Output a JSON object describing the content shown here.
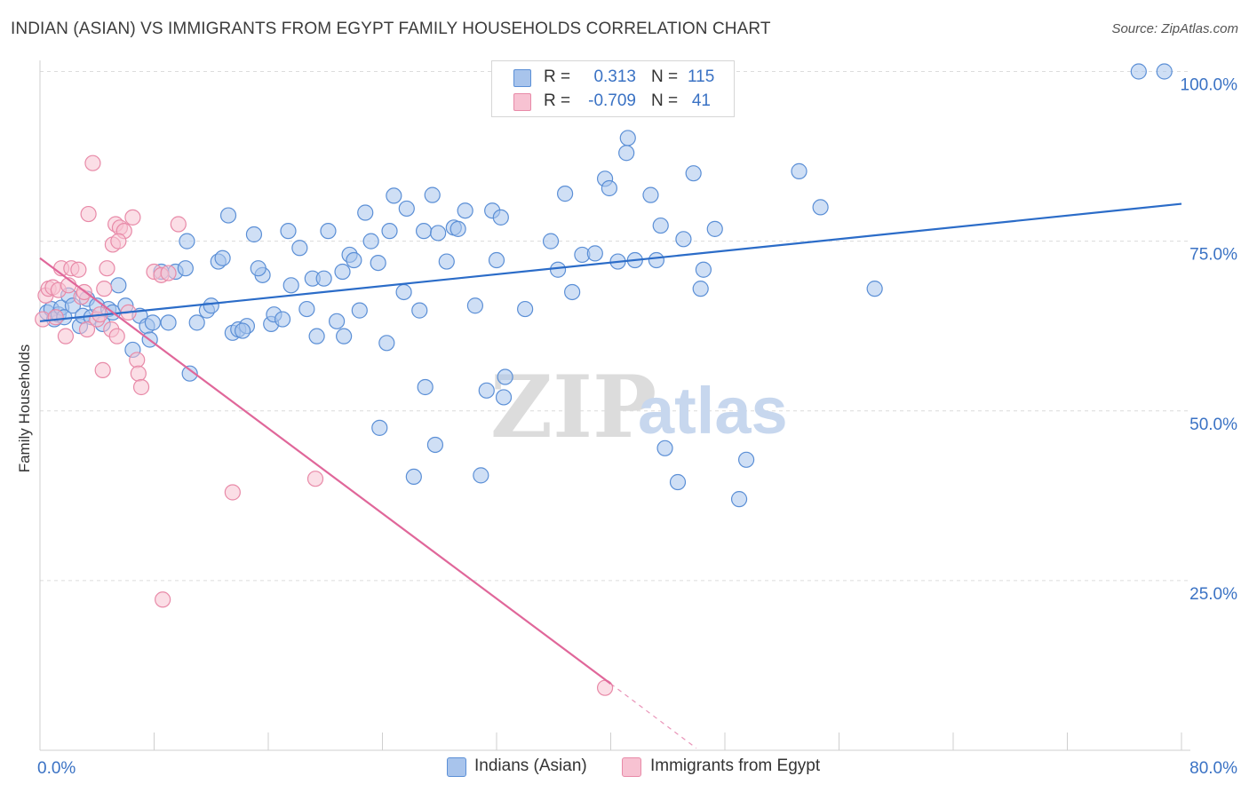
{
  "title": "INDIAN (ASIAN) VS IMMIGRANTS FROM EGYPT FAMILY HOUSEHOLDS CORRELATION CHART",
  "source": "Source: ZipAtlas.com",
  "watermark": {
    "zip": "ZIP",
    "atlas": "atlas"
  },
  "legend": {
    "rows": [
      {
        "r_label": "R =",
        "r_value": "0.313",
        "n_label": "N =",
        "n_value": "115",
        "color": "#a8c4ec"
      },
      {
        "r_label": "R =",
        "r_value": "-0.709",
        "n_label": "N =",
        "n_value": "41",
        "color": "#f5b6c8"
      }
    ]
  },
  "bottom_legend": [
    {
      "label": "Indians (Asian)",
      "color": "#a8c4ec"
    },
    {
      "label": "Immigrants from Egypt",
      "color": "#f5b6c8"
    }
  ],
  "colors": {
    "blue_fill": "#a8c4ec",
    "blue_stroke": "#5b8fd6",
    "blue_line": "#2b6cc8",
    "pink_fill": "#f7c2d2",
    "pink_stroke": "#e88aa8",
    "pink_line": "#e0679a",
    "tick_label": "#3a72c4",
    "grid": "#dcdcdc"
  },
  "chart_data": {
    "type": "scatter",
    "ylabel": "Family Households",
    "x_tick_labels": [
      "0.0%",
      "80.0%"
    ],
    "y_tick_labels": [
      "100.0%",
      "75.0%",
      "50.0%",
      "25.0%"
    ],
    "xlim": [
      0,
      80
    ],
    "ylim": [
      0,
      102
    ],
    "y_ticks": [
      100,
      75,
      50,
      25
    ],
    "grid": true,
    "legend_position": "top-center",
    "series": [
      {
        "name": "Indians (Asian)",
        "trend": {
          "x0": 0,
          "y0": 63.2,
          "x1": 80,
          "y1": 80.5
        },
        "points": [
          [
            0.5,
            64.5
          ],
          [
            0.8,
            65.0
          ],
          [
            1.0,
            63.5
          ],
          [
            1.3,
            64.2
          ],
          [
            1.5,
            65.2
          ],
          [
            1.7,
            63.8
          ],
          [
            2.0,
            67.0
          ],
          [
            2.3,
            65.5
          ],
          [
            2.8,
            62.5
          ],
          [
            3.0,
            64.0
          ],
          [
            3.3,
            66.5
          ],
          [
            3.6,
            63.8
          ],
          [
            4.0,
            65.5
          ],
          [
            4.4,
            62.8
          ],
          [
            4.8,
            65.0
          ],
          [
            5.1,
            64.5
          ],
          [
            5.5,
            68.5
          ],
          [
            6.0,
            65.5
          ],
          [
            6.5,
            59.0
          ],
          [
            7.0,
            64.0
          ],
          [
            7.5,
            62.5
          ],
          [
            7.7,
            60.5
          ],
          [
            8.5,
            70.5
          ],
          [
            9.0,
            63.0
          ],
          [
            9.5,
            70.5
          ],
          [
            10.3,
            75.0
          ],
          [
            10.5,
            55.5
          ],
          [
            11.0,
            63.0
          ],
          [
            11.7,
            64.8
          ],
          [
            12.0,
            65.5
          ],
          [
            12.5,
            72.0
          ],
          [
            12.8,
            72.5
          ],
          [
            13.2,
            78.8
          ],
          [
            13.5,
            61.5
          ],
          [
            13.9,
            62.0
          ],
          [
            14.5,
            62.5
          ],
          [
            14.2,
            61.8
          ],
          [
            15.0,
            76.0
          ],
          [
            15.6,
            70.0
          ],
          [
            15.3,
            71.0
          ],
          [
            16.2,
            62.8
          ],
          [
            16.4,
            64.2
          ],
          [
            17.0,
            63.5
          ],
          [
            17.4,
            76.5
          ],
          [
            17.6,
            68.5
          ],
          [
            18.2,
            74.0
          ],
          [
            18.7,
            65.0
          ],
          [
            19.1,
            69.5
          ],
          [
            19.4,
            61.0
          ],
          [
            19.9,
            69.5
          ],
          [
            20.2,
            76.5
          ],
          [
            20.8,
            63.2
          ],
          [
            21.2,
            70.5
          ],
          [
            21.3,
            61.0
          ],
          [
            21.7,
            73.0
          ],
          [
            22.0,
            72.2
          ],
          [
            22.4,
            64.8
          ],
          [
            22.8,
            79.2
          ],
          [
            23.2,
            75.0
          ],
          [
            23.7,
            71.8
          ],
          [
            24.3,
            60.0
          ],
          [
            24.5,
            76.5
          ],
          [
            24.8,
            81.7
          ],
          [
            25.7,
            79.8
          ],
          [
            25.5,
            67.5
          ],
          [
            26.9,
            76.5
          ],
          [
            26.6,
            64.8
          ],
          [
            27.0,
            53.5
          ],
          [
            27.5,
            81.8
          ],
          [
            27.7,
            45.0
          ],
          [
            27.9,
            76.2
          ],
          [
            28.5,
            72.0
          ],
          [
            29.0,
            77.0
          ],
          [
            29.3,
            76.8
          ],
          [
            29.8,
            79.5
          ],
          [
            30.5,
            65.5
          ],
          [
            31.3,
            53.0
          ],
          [
            31.7,
            79.5
          ],
          [
            32.3,
            78.5
          ],
          [
            32.0,
            72.2
          ],
          [
            32.6,
            55.0
          ],
          [
            32.5,
            52.0
          ],
          [
            23.8,
            47.5
          ],
          [
            26.2,
            40.3
          ],
          [
            30.9,
            40.5
          ],
          [
            35.8,
            75.0
          ],
          [
            36.3,
            70.8
          ],
          [
            36.8,
            82.0
          ],
          [
            37.3,
            67.5
          ],
          [
            38.0,
            73.0
          ],
          [
            38.9,
            73.2
          ],
          [
            39.6,
            84.2
          ],
          [
            39.9,
            82.8
          ],
          [
            40.5,
            72.0
          ],
          [
            41.1,
            88.0
          ],
          [
            41.2,
            90.2
          ],
          [
            41.7,
            72.2
          ],
          [
            42.8,
            81.8
          ],
          [
            43.2,
            72.2
          ],
          [
            43.5,
            77.3
          ],
          [
            43.8,
            44.5
          ],
          [
            44.7,
            39.5
          ],
          [
            45.1,
            75.3
          ],
          [
            45.8,
            85.0
          ],
          [
            46.3,
            68.0
          ],
          [
            46.5,
            70.8
          ],
          [
            47.3,
            76.8
          ],
          [
            49.5,
            42.8
          ],
          [
            49.0,
            37.0
          ],
          [
            53.2,
            85.3
          ],
          [
            54.7,
            80.0
          ],
          [
            58.5,
            68.0
          ],
          [
            77.0,
            100.0
          ],
          [
            78.8,
            100.0
          ],
          [
            34.0,
            65.0
          ],
          [
            7.9,
            63.0
          ],
          [
            10.2,
            71.0
          ]
        ]
      },
      {
        "name": "Immigrants from Egypt",
        "trend": {
          "x0": 0,
          "y0": 72.5,
          "x1": 40,
          "y1": 9.8
        },
        "trend_dashed_to": {
          "x": 46.0,
          "y": 0.3
        },
        "points": [
          [
            0.2,
            63.5
          ],
          [
            0.4,
            67.0
          ],
          [
            0.6,
            68.0
          ],
          [
            0.9,
            68.2
          ],
          [
            1.1,
            63.8
          ],
          [
            1.3,
            67.8
          ],
          [
            1.5,
            71.0
          ],
          [
            1.8,
            61.0
          ],
          [
            2.0,
            68.5
          ],
          [
            2.2,
            71.0
          ],
          [
            2.7,
            70.8
          ],
          [
            2.9,
            66.8
          ],
          [
            3.1,
            67.5
          ],
          [
            3.3,
            62.0
          ],
          [
            3.4,
            79.0
          ],
          [
            3.7,
            86.5
          ],
          [
            4.0,
            63.5
          ],
          [
            4.2,
            64.2
          ],
          [
            4.4,
            56.0
          ],
          [
            4.5,
            68.0
          ],
          [
            4.7,
            71.0
          ],
          [
            5.0,
            62.0
          ],
          [
            5.3,
            77.5
          ],
          [
            5.6,
            77.0
          ],
          [
            5.9,
            76.5
          ],
          [
            6.2,
            64.5
          ],
          [
            6.5,
            78.5
          ],
          [
            6.8,
            57.5
          ],
          [
            6.9,
            55.5
          ],
          [
            7.1,
            53.5
          ],
          [
            8.0,
            70.5
          ],
          [
            8.5,
            70.0
          ],
          [
            9.0,
            70.3
          ],
          [
            9.7,
            77.5
          ],
          [
            8.6,
            22.2
          ],
          [
            13.5,
            38.0
          ],
          [
            19.3,
            40.0
          ],
          [
            39.6,
            9.2
          ],
          [
            5.1,
            74.5
          ],
          [
            5.5,
            75.0
          ],
          [
            5.4,
            61.0
          ]
        ]
      }
    ]
  }
}
